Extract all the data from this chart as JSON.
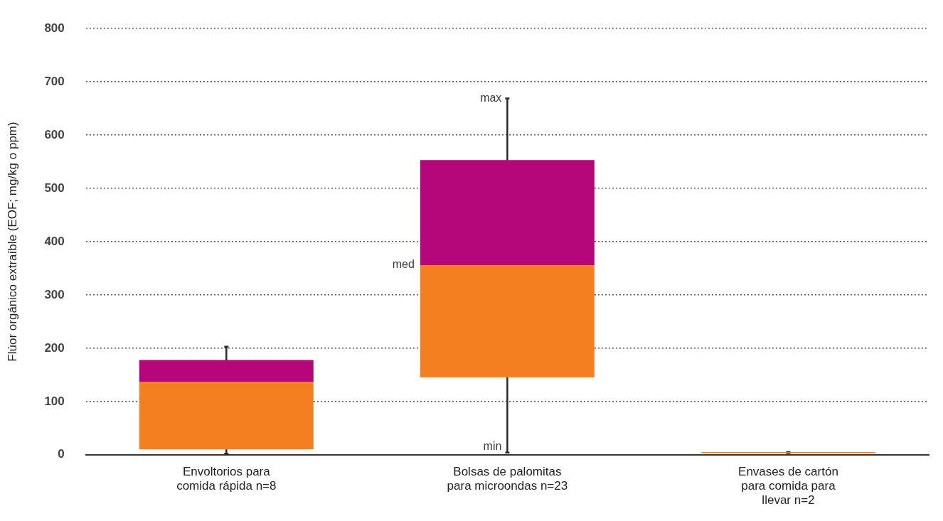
{
  "chart_data": {
    "type": "box",
    "ylabel": "Flúor orgánico extraíble (EOF; mg/kg o ppm)",
    "categories": [
      "Envoltorios para comida rápida n=8",
      "Bolsas de palomitas para microondas n=23",
      "Envases de cartón para comida para llevar n=2"
    ],
    "colors": [
      "#b5067a",
      "#b5067a",
      "#b5067a"
    ],
    "series": [
      {
        "color": "#f47f20",
        "boxes": [
          {
            "low": 2,
            "q1": 10,
            "median": 137,
            "q3": 178,
            "high": 203
          },
          {
            "low": 4,
            "q1": 145,
            "median": 356,
            "q3": 553,
            "high": 669
          },
          {
            "low": 3,
            "q1": 3,
            "median": 5,
            "q3": 5,
            "high": 5
          }
        ]
      }
    ],
    "ylim": [
      0,
      800
    ],
    "yticks": [
      0,
      100,
      200,
      300,
      400,
      500,
      600,
      700,
      800
    ],
    "grid": "y",
    "legend": false,
    "annotations": [
      {
        "text": "max",
        "x": "Bolsas de palomitas para microondas n=23",
        "y": 669
      },
      "med",
      {
        "text": "min",
        "x": "Bolsas de palomitas para microondas n=23",
        "y": 4
      }
    ]
  }
}
